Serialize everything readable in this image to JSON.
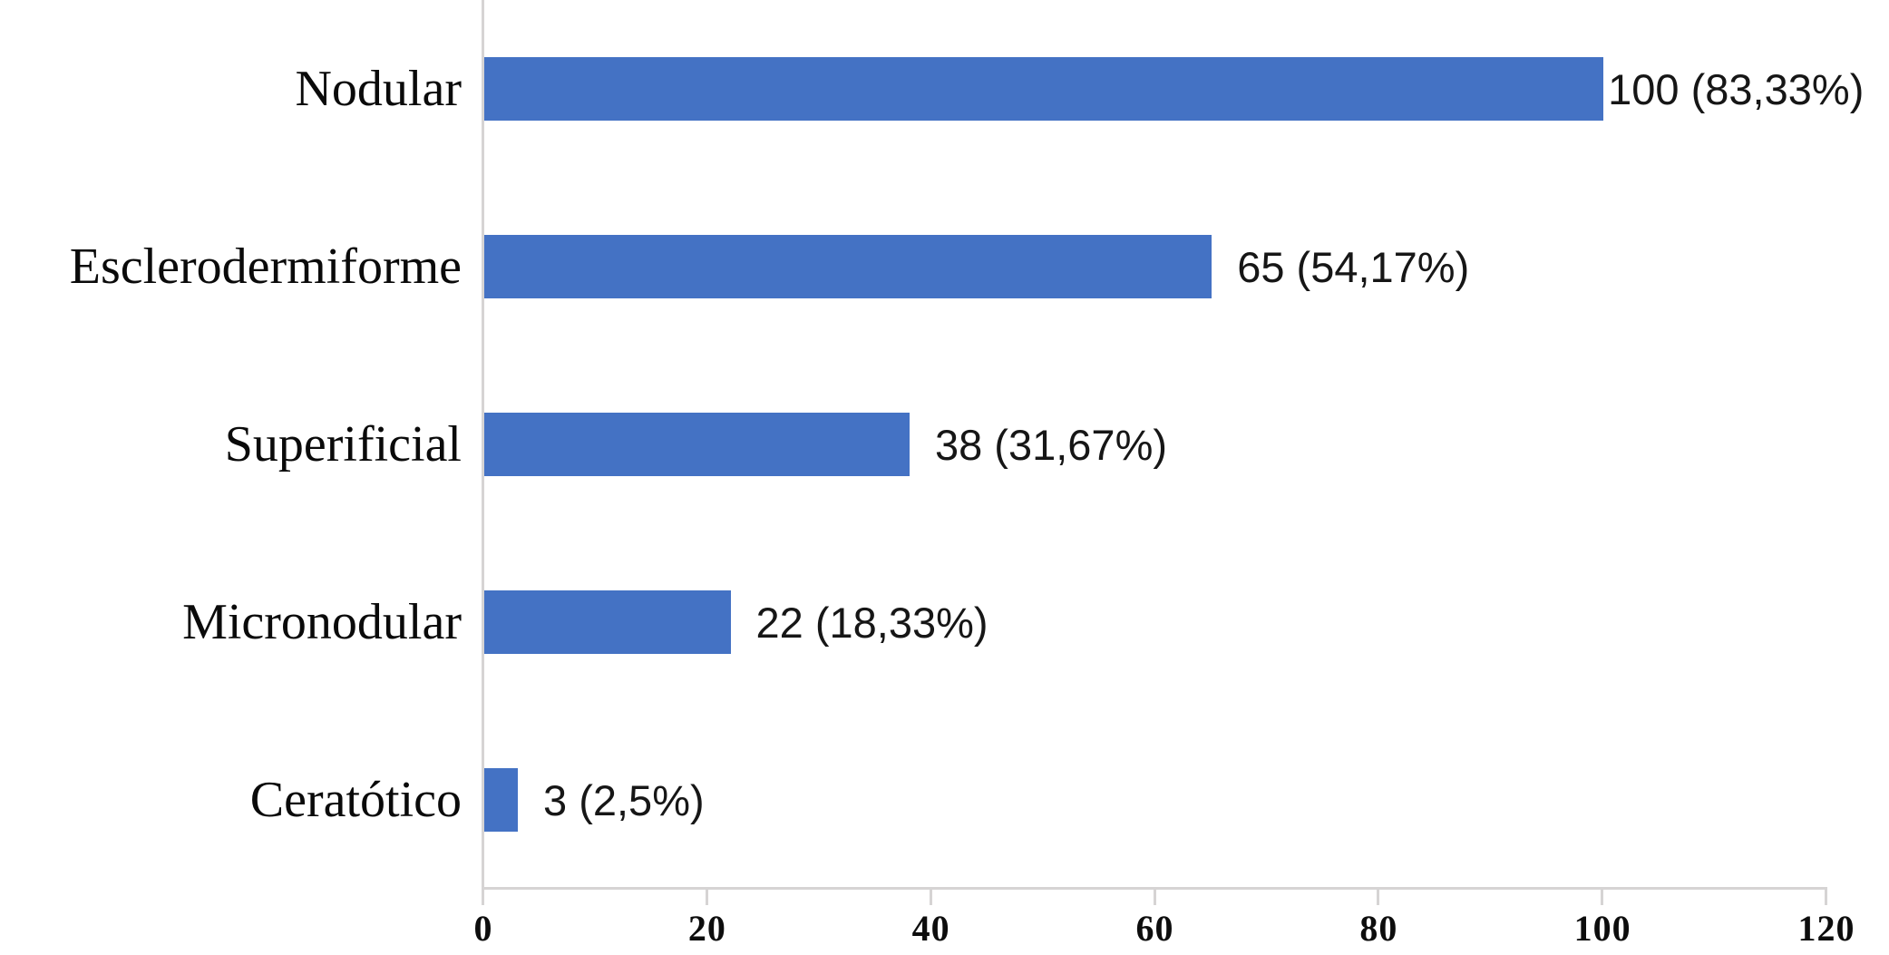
{
  "chart_data": {
    "type": "bar",
    "orientation": "horizontal",
    "title": "",
    "xlabel": "",
    "ylabel": "",
    "categories": [
      "Nodular",
      "Esclerodermiforme",
      "Superificial",
      "Micronodular",
      "Ceratótico"
    ],
    "values": [
      100,
      65,
      38,
      22,
      3
    ],
    "value_labels": [
      "100 (83,33%)",
      "65 (54,17%)",
      "38 (31,67%)",
      "22 (18,33%)",
      "3 (2,5%)"
    ],
    "x_ticks": [
      "0",
      "20",
      "40",
      "60",
      "80",
      "100",
      "120"
    ],
    "xlim": [
      0,
      120
    ],
    "grid": false,
    "legend": null,
    "colors": {
      "bar_fill": "#4472c4",
      "axis_line": "#d6d4d4",
      "category_text": "#0a0a0a",
      "value_text": "#161616",
      "tick_text": "#0d0d0d",
      "background": "#ffffff"
    }
  }
}
